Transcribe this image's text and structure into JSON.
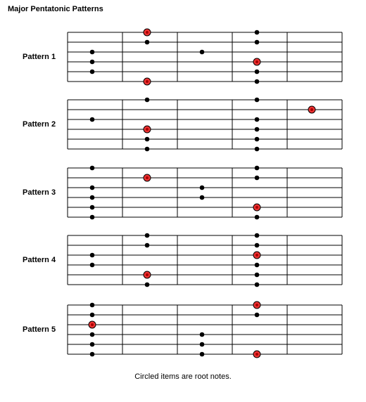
{
  "title": "Major Pentatonic Patterns",
  "caption": "Circled items are root notes.",
  "colors": {
    "root_fill": "#ee3333",
    "note_fill": "#000000",
    "grid": "#000000"
  },
  "patterns": [
    {
      "label": "Pattern 1",
      "notes": [
        {
          "fret": 2,
          "string": 1,
          "root": true
        },
        {
          "fret": 4,
          "string": 1,
          "root": false
        },
        {
          "fret": 2,
          "string": 2,
          "root": false
        },
        {
          "fret": 4,
          "string": 2,
          "root": false
        },
        {
          "fret": 1,
          "string": 3,
          "root": false
        },
        {
          "fret": 3,
          "string": 3,
          "root": false
        },
        {
          "fret": 1,
          "string": 4,
          "root": false
        },
        {
          "fret": 4,
          "string": 4,
          "root": true
        },
        {
          "fret": 1,
          "string": 5,
          "root": false
        },
        {
          "fret": 4,
          "string": 5,
          "root": false
        },
        {
          "fret": 2,
          "string": 6,
          "root": true
        },
        {
          "fret": 4,
          "string": 6,
          "root": false
        }
      ]
    },
    {
      "label": "Pattern 2",
      "notes": [
        {
          "fret": 2,
          "string": 1,
          "root": false
        },
        {
          "fret": 4,
          "string": 1,
          "root": false
        },
        {
          "fret": 5,
          "string": 2,
          "root": true
        },
        {
          "fret": 1,
          "string": 3,
          "root": false
        },
        {
          "fret": 4,
          "string": 3,
          "root": false
        },
        {
          "fret": 2,
          "string": 4,
          "root": true
        },
        {
          "fret": 4,
          "string": 4,
          "root": false
        },
        {
          "fret": 2,
          "string": 5,
          "root": false
        },
        {
          "fret": 4,
          "string": 5,
          "root": false
        },
        {
          "fret": 2,
          "string": 6,
          "root": false
        },
        {
          "fret": 4,
          "string": 6,
          "root": false
        }
      ]
    },
    {
      "label": "Pattern 3",
      "notes": [
        {
          "fret": 1,
          "string": 1,
          "root": false
        },
        {
          "fret": 4,
          "string": 1,
          "root": false
        },
        {
          "fret": 2,
          "string": 2,
          "root": true
        },
        {
          "fret": 4,
          "string": 2,
          "root": false
        },
        {
          "fret": 1,
          "string": 3,
          "root": false
        },
        {
          "fret": 3,
          "string": 3,
          "root": false
        },
        {
          "fret": 1,
          "string": 4,
          "root": false
        },
        {
          "fret": 3,
          "string": 4,
          "root": false
        },
        {
          "fret": 1,
          "string": 5,
          "root": false
        },
        {
          "fret": 4,
          "string": 5,
          "root": true
        },
        {
          "fret": 1,
          "string": 6,
          "root": false
        },
        {
          "fret": 4,
          "string": 6,
          "root": false
        }
      ]
    },
    {
      "label": "Pattern 4",
      "notes": [
        {
          "fret": 2,
          "string": 1,
          "root": false
        },
        {
          "fret": 4,
          "string": 1,
          "root": false
        },
        {
          "fret": 2,
          "string": 2,
          "root": false
        },
        {
          "fret": 4,
          "string": 2,
          "root": false
        },
        {
          "fret": 1,
          "string": 3,
          "root": false
        },
        {
          "fret": 4,
          "string": 3,
          "root": true
        },
        {
          "fret": 1,
          "string": 4,
          "root": false
        },
        {
          "fret": 4,
          "string": 4,
          "root": false
        },
        {
          "fret": 2,
          "string": 5,
          "root": true
        },
        {
          "fret": 4,
          "string": 5,
          "root": false
        },
        {
          "fret": 2,
          "string": 6,
          "root": false
        },
        {
          "fret": 4,
          "string": 6,
          "root": false
        }
      ]
    },
    {
      "label": "Pattern 5",
      "notes": [
        {
          "fret": 1,
          "string": 1,
          "root": false
        },
        {
          "fret": 4,
          "string": 1,
          "root": true
        },
        {
          "fret": 1,
          "string": 2,
          "root": false
        },
        {
          "fret": 4,
          "string": 2,
          "root": false
        },
        {
          "fret": 1,
          "string": 3,
          "root": true
        },
        {
          "fret": 1,
          "string": 4,
          "root": false
        },
        {
          "fret": 3,
          "string": 4,
          "root": false
        },
        {
          "fret": 1,
          "string": 5,
          "root": false
        },
        {
          "fret": 3,
          "string": 5,
          "root": false
        },
        {
          "fret": 1,
          "string": 6,
          "root": false
        },
        {
          "fret": 3,
          "string": 6,
          "root": false
        },
        {
          "fret": 4,
          "string": 6,
          "root": true
        }
      ]
    }
  ]
}
